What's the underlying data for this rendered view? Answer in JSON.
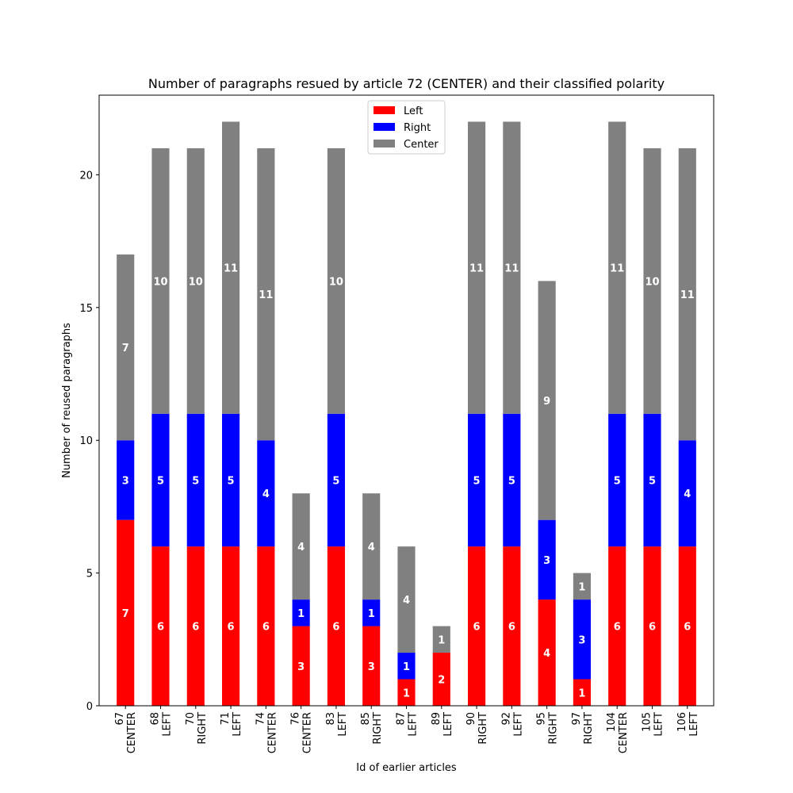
{
  "chart_data": {
    "type": "bar",
    "stacked": true,
    "title": "Number of paragraphs resued by article 72 (CENTER) and their classified polarity",
    "xlabel": "Id of earlier articles",
    "ylabel": "Number of reused paragraphs",
    "ylim": [
      0,
      23
    ],
    "yticks": [
      0,
      5,
      10,
      15,
      20
    ],
    "grid": false,
    "legend_position": "top-center",
    "categories": [
      {
        "id": "67",
        "polarity": "CENTER"
      },
      {
        "id": "68",
        "polarity": "LEFT"
      },
      {
        "id": "70",
        "polarity": "RIGHT"
      },
      {
        "id": "71",
        "polarity": "LEFT"
      },
      {
        "id": "74",
        "polarity": "CENTER"
      },
      {
        "id": "76",
        "polarity": "CENTER"
      },
      {
        "id": "83",
        "polarity": "LEFT"
      },
      {
        "id": "85",
        "polarity": "RIGHT"
      },
      {
        "id": "87",
        "polarity": "LEFT"
      },
      {
        "id": "89",
        "polarity": "LEFT"
      },
      {
        "id": "90",
        "polarity": "RIGHT"
      },
      {
        "id": "92",
        "polarity": "LEFT"
      },
      {
        "id": "95",
        "polarity": "RIGHT"
      },
      {
        "id": "97",
        "polarity": "RIGHT"
      },
      {
        "id": "104",
        "polarity": "CENTER"
      },
      {
        "id": "105",
        "polarity": "LEFT"
      },
      {
        "id": "106",
        "polarity": "LEFT"
      }
    ],
    "series": [
      {
        "name": "Left",
        "color": "#ff0000",
        "values": [
          7,
          6,
          6,
          6,
          6,
          3,
          6,
          3,
          1,
          2,
          6,
          6,
          4,
          1,
          6,
          6,
          6
        ]
      },
      {
        "name": "Right",
        "color": "#0000ff",
        "values": [
          3,
          5,
          5,
          5,
          4,
          1,
          5,
          1,
          1,
          0,
          5,
          5,
          3,
          3,
          5,
          5,
          4
        ]
      },
      {
        "name": "Center",
        "color": "#808080",
        "values": [
          7,
          10,
          10,
          11,
          11,
          4,
          10,
          4,
          4,
          1,
          11,
          11,
          9,
          1,
          11,
          10,
          11
        ]
      }
    ]
  }
}
